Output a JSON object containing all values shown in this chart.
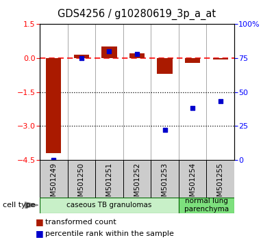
{
  "title": "GDS4256 / g10280619_3p_a_at",
  "samples": [
    "GSM501249",
    "GSM501250",
    "GSM501251",
    "GSM501252",
    "GSM501253",
    "GSM501254",
    "GSM501255"
  ],
  "red_bars": [
    -4.2,
    0.15,
    0.5,
    0.2,
    -0.7,
    -0.2,
    -0.05
  ],
  "blue_pct": [
    0,
    75,
    80,
    78,
    22,
    38,
    43
  ],
  "ylim_left": [
    -4.5,
    1.5
  ],
  "ylim_right": [
    0,
    100
  ],
  "yticks_left": [
    -4.5,
    -3.0,
    -1.5,
    0.0,
    1.5
  ],
  "yticks_right": [
    0,
    25,
    50,
    75,
    100
  ],
  "dotted_lines": [
    -1.5,
    -3.0
  ],
  "cell_type_groups": [
    {
      "label": "caseous TB granulomas",
      "count": 5,
      "color": "#c8f0c8"
    },
    {
      "label": "normal lung\nparenchyma",
      "count": 2,
      "color": "#7de07d"
    }
  ],
  "legend_red": "transformed count",
  "legend_blue": "percentile rank within the sample",
  "bar_color": "#aa1a00",
  "blue_color": "#0000cc",
  "gray_box": "#cccccc",
  "bar_width": 0.55,
  "plot_bg": "#ffffff"
}
